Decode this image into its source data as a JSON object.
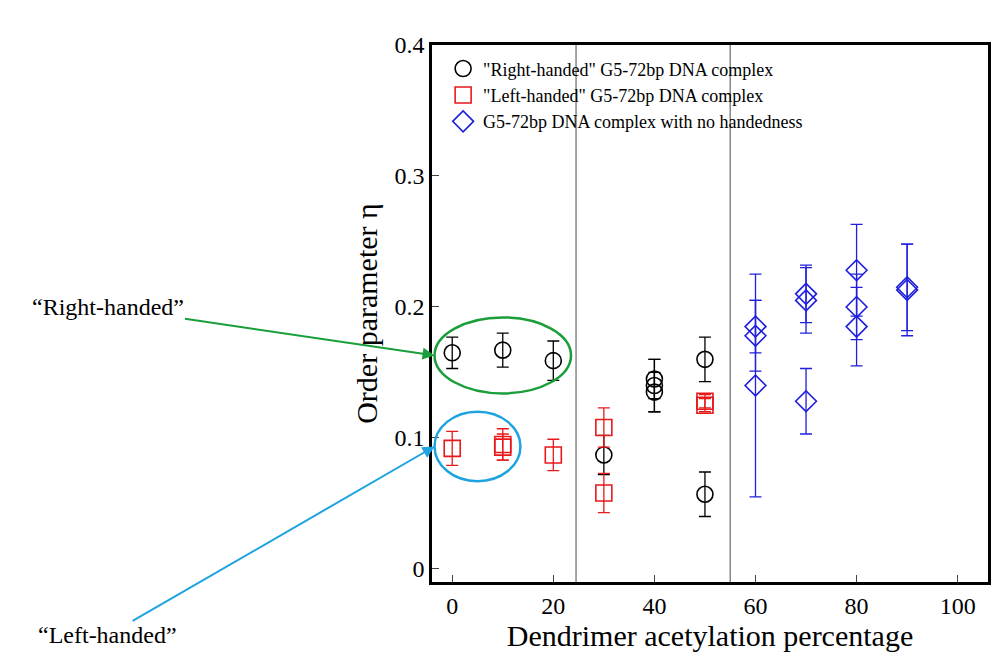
{
  "chart_data": {
    "type": "scatter",
    "x_label": "Dendrimer acetylation percentage",
    "y_label": "Order parameter η",
    "xlim": [
      -4,
      106
    ],
    "ylim": [
      -0.01,
      0.4
    ],
    "xticks": [
      0,
      20,
      40,
      60,
      80,
      100
    ],
    "yticks": [
      0,
      0.1,
      0.2,
      0.3,
      0.4
    ],
    "grid": false,
    "legend": "top left",
    "dividers": [
      24.5,
      55
    ],
    "series": [
      {
        "name": "\"Right-handed\" G5-72bp DNA complex",
        "color": "#000000",
        "marker": "circle-open",
        "x": [
          0,
          10,
          20,
          30,
          40,
          40,
          40,
          50,
          50
        ],
        "values": [
          0.165,
          0.167,
          0.159,
          0.087,
          0.14,
          0.135,
          0.145,
          0.16,
          0.057
        ],
        "error": [
          0.012,
          0.013,
          0.015,
          0.015,
          0.02,
          0.015,
          0.015,
          0.017,
          0.017
        ]
      },
      {
        "name": "\"Left-handed\" G5-72bp DNA complex",
        "color": "#e8191b",
        "marker": "square-open",
        "x": [
          0,
          10,
          10,
          20,
          30,
          30,
          50,
          50
        ],
        "values": [
          0.092,
          0.095,
          0.093,
          0.087,
          0.108,
          0.058,
          0.128,
          0.125
        ],
        "error": [
          0.013,
          0.012,
          0.01,
          0.012,
          0.015,
          0.015,
          0.005,
          0.005
        ]
      },
      {
        "name": "G5-72bp DNA complex with no handedness",
        "color": "#1f1fdc",
        "marker": "diamond-open",
        "x": [
          60,
          60,
          60,
          70,
          70,
          70,
          80,
          80,
          80,
          90,
          90
        ],
        "values": [
          0.185,
          0.178,
          0.14,
          0.205,
          0.21,
          0.128,
          0.228,
          0.2,
          0.185,
          0.215,
          0.213
        ],
        "error": [
          0.02,
          0.027,
          0.085,
          0.025,
          0.022,
          0.025,
          0.035,
          0.025,
          0.03,
          0.033,
          0.035
        ]
      }
    ],
    "annotations": [
      {
        "text": "“Right-handed”",
        "color": "#1a9e3a"
      },
      {
        "text": "“Left-handed”",
        "color": "#1fa3e0"
      }
    ]
  }
}
